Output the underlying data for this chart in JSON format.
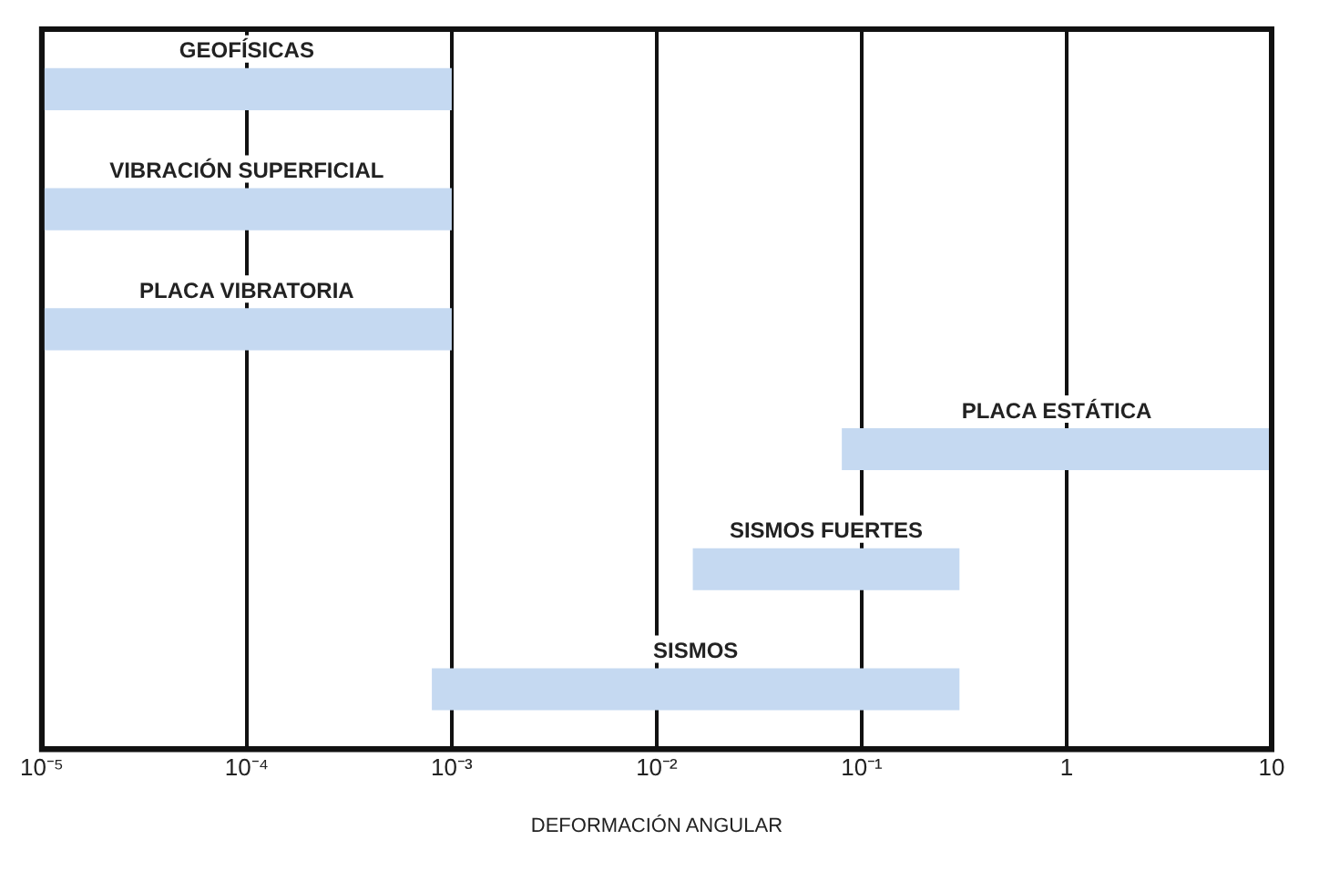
{
  "chart_data": {
    "type": "bar",
    "orientation": "horizontal",
    "xlabel": "DEFORMACIÓN ANGULAR",
    "categories": [
      "GEOFÍSICAS",
      "VIBRACIÓN SUPERFICIAL",
      "PLACA VIBRATORIA",
      "PLACA ESTÁTICA",
      "SISMOS FUERTES",
      "SISMOS"
    ],
    "base": [
      1e-05,
      1e-05,
      1e-05,
      0.08,
      0.015,
      0.0008
    ],
    "values": [
      0.00099,
      0.00099,
      0.00099,
      9.92,
      0.285,
      0.2992
    ],
    "color": "#c5d9f1",
    "log": "x",
    "xlim": [
      1e-05,
      10
    ],
    "xticks": [
      {
        "value": 1e-05,
        "label": "10⁻⁵"
      },
      {
        "value": 0.0001,
        "label": "10⁻⁴"
      },
      {
        "value": 0.001,
        "label": "10⁻³"
      },
      {
        "value": 0.01,
        "label": "10⁻²"
      },
      {
        "value": 0.1,
        "label": "10⁻¹"
      },
      1,
      10
    ],
    "grid": "x",
    "tick_labels": "x",
    "legend": false
  }
}
